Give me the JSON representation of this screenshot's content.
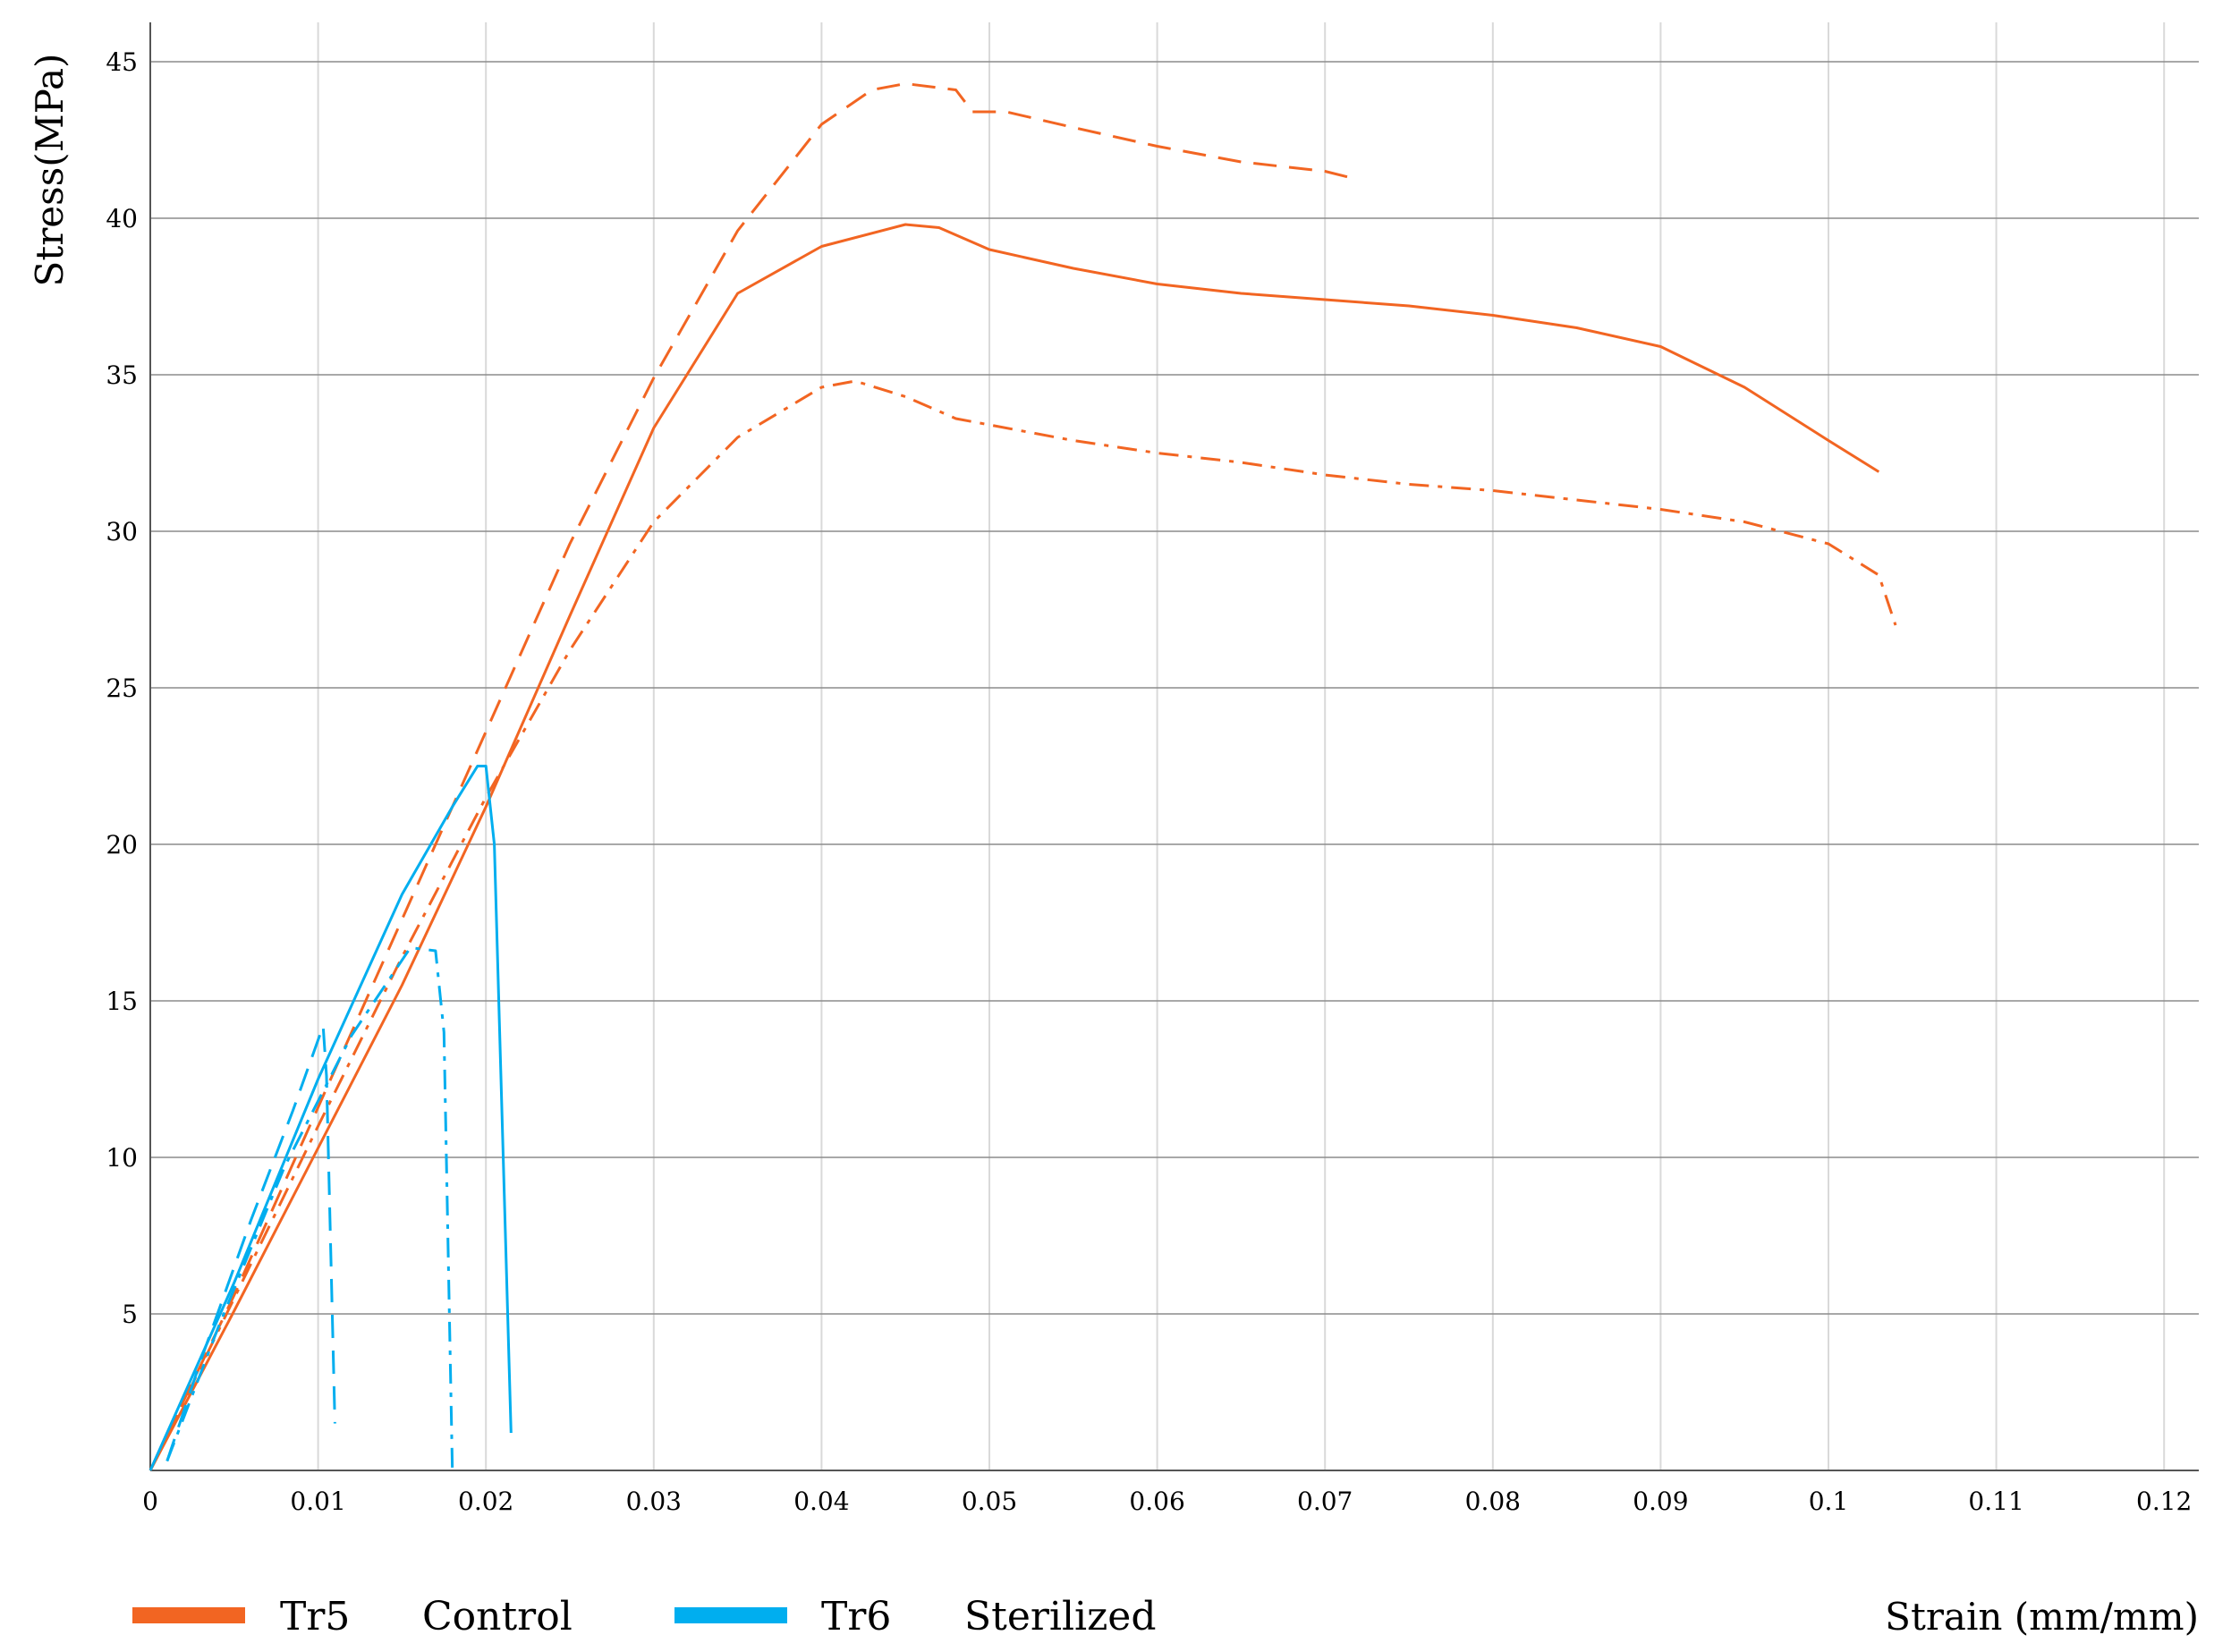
{
  "chart_data": {
    "type": "line",
    "xlabel": "Strain (mm/mm)",
    "ylabel": "Stress(MPa)",
    "xlim": [
      0,
      0.122
    ],
    "ylim": [
      0,
      46
    ],
    "x_ticks": [
      0,
      0.01,
      0.02,
      0.03,
      0.04,
      0.05,
      0.06,
      0.07,
      0.08,
      0.09,
      0.1,
      0.11,
      0.12
    ],
    "x_tick_labels": [
      "0",
      "0.01",
      "0.02",
      "0.03",
      "0.04",
      "0.05",
      "0.06",
      "0.07",
      "0.08",
      "0.09",
      "0.1",
      "0.11",
      "0.12"
    ],
    "y_ticks": [
      5,
      10,
      15,
      20,
      25,
      30,
      35,
      40,
      45
    ],
    "y_tick_labels": [
      "5",
      "10",
      "15",
      "20",
      "25",
      "30",
      "35",
      "40",
      "45"
    ],
    "grid": true,
    "legend_position": "bottom-left",
    "legend": [
      {
        "name": "Tr5",
        "label": "Control",
        "color": "#f26522"
      },
      {
        "name": "Tr6",
        "label": "Sterilized",
        "color": "#00aeef"
      }
    ],
    "series": [
      {
        "group": "Tr5",
        "color": "#f26522",
        "dash": "solid",
        "points": [
          [
            0,
            0
          ],
          [
            0.005,
            5.1
          ],
          [
            0.01,
            10.3
          ],
          [
            0.015,
            15.5
          ],
          [
            0.02,
            21.2
          ],
          [
            0.025,
            27.3
          ],
          [
            0.03,
            33.3
          ],
          [
            0.035,
            37.6
          ],
          [
            0.04,
            39.1
          ],
          [
            0.045,
            39.8
          ],
          [
            0.047,
            39.7
          ],
          [
            0.05,
            39.0
          ],
          [
            0.055,
            38.4
          ],
          [
            0.06,
            37.9
          ],
          [
            0.065,
            37.6
          ],
          [
            0.07,
            37.4
          ],
          [
            0.075,
            37.2
          ],
          [
            0.08,
            36.9
          ],
          [
            0.085,
            36.5
          ],
          [
            0.09,
            35.9
          ],
          [
            0.095,
            34.6
          ],
          [
            0.1,
            32.9
          ],
          [
            0.103,
            31.9
          ]
        ]
      },
      {
        "group": "Tr5",
        "color": "#f26522",
        "dash": "dashed",
        "points": [
          [
            0,
            0
          ],
          [
            0.005,
            5.6
          ],
          [
            0.01,
            11.6
          ],
          [
            0.015,
            17.6
          ],
          [
            0.02,
            23.6
          ],
          [
            0.025,
            29.6
          ],
          [
            0.03,
            34.9
          ],
          [
            0.035,
            39.6
          ],
          [
            0.04,
            43.0
          ],
          [
            0.043,
            44.1
          ],
          [
            0.045,
            44.3
          ],
          [
            0.048,
            44.1
          ],
          [
            0.049,
            43.4
          ],
          [
            0.051,
            43.4
          ],
          [
            0.055,
            42.9
          ],
          [
            0.06,
            42.3
          ],
          [
            0.065,
            41.8
          ],
          [
            0.07,
            41.5
          ],
          [
            0.0715,
            41.3
          ]
        ]
      },
      {
        "group": "Tr5",
        "color": "#f26522",
        "dash": "dashdot",
        "points": [
          [
            0,
            0
          ],
          [
            0.005,
            5.5
          ],
          [
            0.01,
            11.0
          ],
          [
            0.015,
            16.4
          ],
          [
            0.02,
            21.5
          ],
          [
            0.025,
            26.2
          ],
          [
            0.03,
            30.3
          ],
          [
            0.035,
            33.0
          ],
          [
            0.04,
            34.6
          ],
          [
            0.042,
            34.8
          ],
          [
            0.045,
            34.3
          ],
          [
            0.048,
            33.6
          ],
          [
            0.05,
            33.4
          ],
          [
            0.055,
            32.9
          ],
          [
            0.06,
            32.5
          ],
          [
            0.065,
            32.2
          ],
          [
            0.07,
            31.8
          ],
          [
            0.075,
            31.5
          ],
          [
            0.08,
            31.3
          ],
          [
            0.085,
            31.0
          ],
          [
            0.09,
            30.7
          ],
          [
            0.095,
            30.3
          ],
          [
            0.1,
            29.6
          ],
          [
            0.103,
            28.6
          ],
          [
            0.104,
            27.0
          ]
        ]
      },
      {
        "group": "Tr6",
        "color": "#00aeef",
        "dash": "solid",
        "points": [
          [
            0,
            0
          ],
          [
            0.005,
            6.0
          ],
          [
            0.01,
            12.5
          ],
          [
            0.015,
            18.4
          ],
          [
            0.018,
            21.2
          ],
          [
            0.0195,
            22.5
          ],
          [
            0.02,
            22.5
          ],
          [
            0.0205,
            20.0
          ],
          [
            0.0215,
            1.2
          ]
        ]
      },
      {
        "group": "Tr6",
        "color": "#00aeef",
        "dash": "dashed",
        "points": [
          [
            0.001,
            0.3
          ],
          [
            0.003,
            3.5
          ],
          [
            0.006,
            8.0
          ],
          [
            0.0085,
            11.5
          ],
          [
            0.0103,
            14.2
          ],
          [
            0.0105,
            12.6
          ],
          [
            0.011,
            1.5
          ]
        ]
      },
      {
        "group": "Tr6",
        "color": "#00aeef",
        "dash": "dashdot",
        "points": [
          [
            0.001,
            0.3
          ],
          [
            0.004,
            4.5
          ],
          [
            0.008,
            9.7
          ],
          [
            0.012,
            13.9
          ],
          [
            0.0155,
            16.7
          ],
          [
            0.017,
            16.6
          ],
          [
            0.0175,
            14.0
          ],
          [
            0.018,
            0
          ]
        ]
      }
    ]
  }
}
